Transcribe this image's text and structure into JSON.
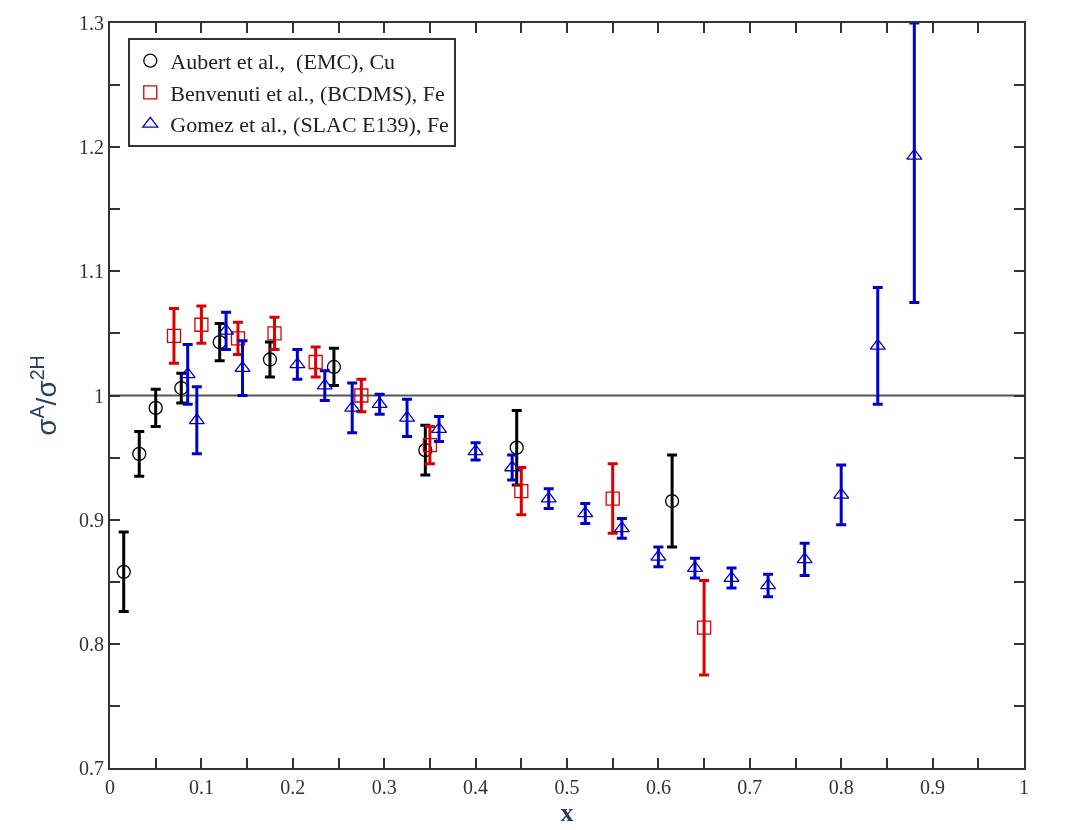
{
  "chart_data": {
    "type": "scatter",
    "xlabel": "x",
    "ylabel": "σ$^{A}$/σ$^{2H}$",
    "xlim": [
      0,
      1
    ],
    "ylim": [
      0.7,
      1.3
    ],
    "xticks": [
      0,
      {
        "value": 0.05,
        "label": null
      },
      0.1,
      {
        "value": 0.15,
        "label": null
      },
      0.2,
      {
        "value": 0.25,
        "label": null
      },
      0.3,
      {
        "value": 0.35,
        "label": null
      },
      0.4,
      {
        "value": 0.45,
        "label": null
      },
      0.5,
      {
        "value": 0.55,
        "label": null
      },
      0.6,
      {
        "value": 0.65,
        "label": null
      },
      0.7,
      {
        "value": 0.75,
        "label": null
      },
      0.8,
      {
        "value": 0.85,
        "label": null
      },
      0.9,
      {
        "value": 0.95,
        "label": null
      },
      1
    ],
    "yticks": [
      0.7,
      {
        "value": 0.75,
        "label": null
      },
      0.8,
      {
        "value": 0.85,
        "label": null
      },
      0.9,
      {
        "value": 0.95,
        "label": null
      },
      1,
      {
        "value": 1.05,
        "label": null
      },
      1.1,
      {
        "value": 1.15,
        "label": null
      },
      1.2,
      {
        "value": 1.25,
        "label": null
      },
      1.3
    ],
    "grid": false,
    "legend": "top left",
    "ref_lines": [
      {
        "axis": "y",
        "value": 1,
        "color": "#555555"
      }
    ],
    "series": [
      {
        "name": "Aubert et al.,  (EMC), Cu",
        "color": "#000000",
        "marker": "circle",
        "x": [
          0.015,
          0.032,
          0.05,
          0.078,
          0.12,
          0.175,
          0.245,
          0.345,
          0.445,
          0.615
        ],
        "values": [
          0.858,
          0.953,
          0.99,
          1.006,
          1.043,
          1.029,
          1.023,
          0.956,
          0.958,
          0.915
        ],
        "errors": [
          0.032,
          0.018,
          0.015,
          0.012,
          0.015,
          0.014,
          0.015,
          0.02,
          0.03,
          0.037
        ]
      },
      {
        "name": "Benvenuti et al., (BCDMS), Fe",
        "color": "#dd0000",
        "marker": "square",
        "x": [
          0.07,
          0.1,
          0.14,
          0.18,
          0.225,
          0.275,
          0.35,
          0.45,
          0.55,
          0.65
        ],
        "values": [
          1.048,
          1.057,
          1.046,
          1.05,
          1.027,
          1.0,
          0.96,
          0.923,
          0.917,
          0.813
        ],
        "errors": [
          0.022,
          0.015,
          0.013,
          0.013,
          0.012,
          0.013,
          0.015,
          0.019,
          0.028,
          0.038
        ]
      },
      {
        "name": "Gomez et al., (SLAC E139), Fe",
        "color": "#0000cc",
        "marker": "triangle",
        "x": [
          0.085,
          0.095,
          0.127,
          0.145,
          0.205,
          0.235,
          0.265,
          0.295,
          0.325,
          0.36,
          0.4,
          0.44,
          0.48,
          0.52,
          0.56,
          0.6,
          0.64,
          0.68,
          0.72,
          0.76,
          0.8,
          0.84,
          0.88
        ],
        "values": [
          1.017,
          0.98,
          1.052,
          1.022,
          1.025,
          1.008,
          0.99,
          0.993,
          0.982,
          0.973,
          0.955,
          0.942,
          0.917,
          0.905,
          0.893,
          0.87,
          0.861,
          0.853,
          0.847,
          0.868,
          0.92,
          1.04,
          1.193
        ],
        "errors": [
          0.024,
          0.027,
          0.015,
          0.022,
          0.012,
          0.012,
          0.02,
          0.008,
          0.015,
          0.01,
          0.007,
          0.01,
          0.008,
          0.008,
          0.008,
          0.008,
          0.008,
          0.008,
          0.009,
          0.013,
          0.024,
          0.047,
          [
            1.075,
            1.3
          ]
        ]
      }
    ]
  }
}
